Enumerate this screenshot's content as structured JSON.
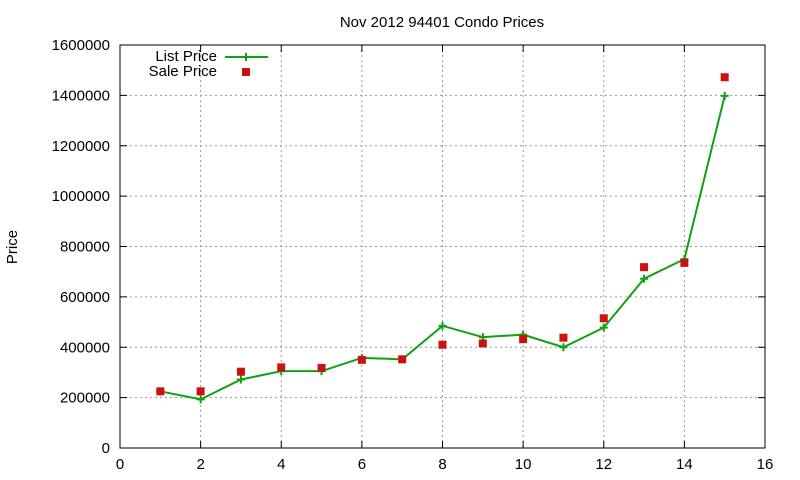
{
  "chart_data": {
    "type": "line",
    "title": "Nov 2012 94401 Condo Prices",
    "xlabel": "",
    "ylabel": "Price",
    "xlim": [
      0,
      16
    ],
    "ylim": [
      0,
      1600000
    ],
    "x_ticks": [
      0,
      2,
      4,
      6,
      8,
      10,
      12,
      14,
      16
    ],
    "y_ticks": [
      0,
      200000,
      400000,
      600000,
      800000,
      1000000,
      1200000,
      1400000,
      1600000
    ],
    "grid": true,
    "legend_position": "top-left",
    "series": [
      {
        "name": "List Price",
        "style": "line-with-plus-markers",
        "color": "#11a011",
        "x": [
          1,
          2,
          3,
          4,
          5,
          6,
          7,
          8,
          9,
          10,
          11,
          12,
          13,
          14,
          15
        ],
        "values": [
          225000,
          193000,
          272000,
          305000,
          305000,
          358000,
          352000,
          485000,
          440000,
          450000,
          400000,
          478000,
          672000,
          750000,
          1398000
        ]
      },
      {
        "name": "Sale Price",
        "style": "square-markers",
        "color": "#cc1111",
        "x": [
          1,
          2,
          3,
          4,
          5,
          6,
          7,
          8,
          9,
          10,
          11,
          12,
          13,
          14,
          15
        ],
        "values": [
          225000,
          225000,
          303000,
          320000,
          318000,
          350000,
          352000,
          410000,
          415000,
          432000,
          438000,
          515000,
          718000,
          735000,
          1472000
        ]
      }
    ]
  }
}
